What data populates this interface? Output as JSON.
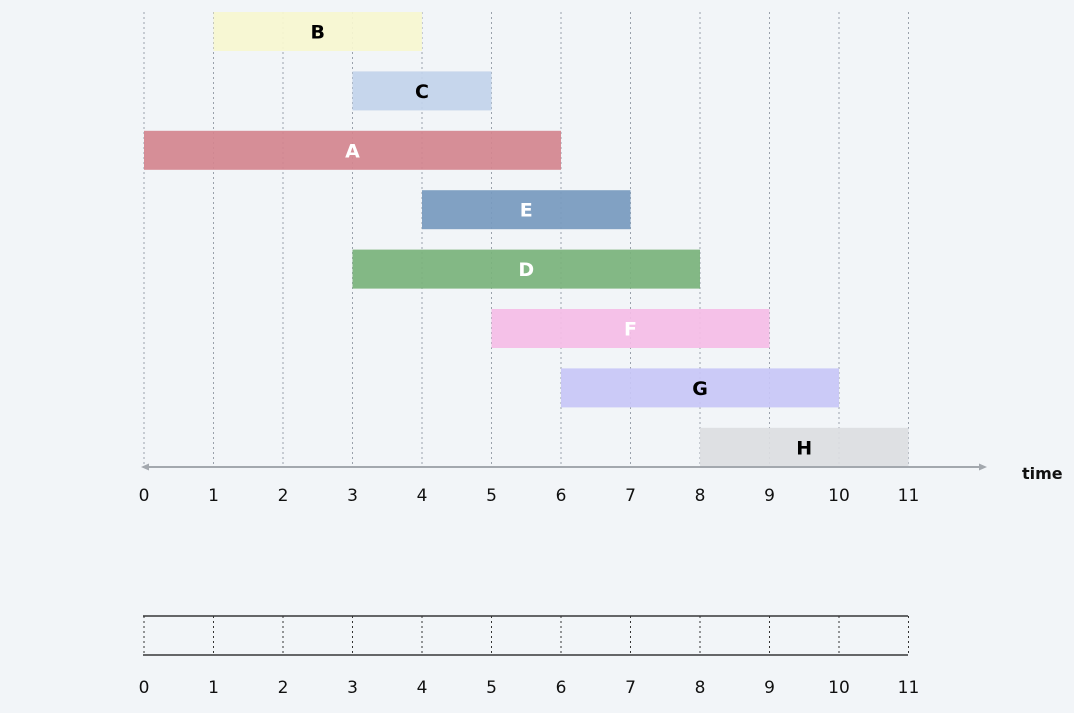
{
  "axis": {
    "label": "time",
    "ticks": [
      0,
      1,
      2,
      3,
      4,
      5,
      6,
      7,
      8,
      9,
      10,
      11
    ]
  },
  "timeline": {
    "ticks": [
      0,
      1,
      2,
      3,
      4,
      5,
      6,
      7,
      8,
      9,
      10,
      11
    ]
  },
  "tasks": [
    {
      "label": "B",
      "start": 1,
      "end": 4,
      "color": "#f7f6cf",
      "text_color": "#000000"
    },
    {
      "label": "C",
      "start": 3,
      "end": 5,
      "color": "#c2d3ea",
      "text_color": "#000000"
    },
    {
      "label": "A",
      "start": 0,
      "end": 6,
      "color": "#d4848e",
      "text_color": "#ffffff"
    },
    {
      "label": "E",
      "start": 4,
      "end": 7,
      "color": "#7799be",
      "text_color": "#ffffff"
    },
    {
      "label": "D",
      "start": 3,
      "end": 8,
      "color": "#7ab27b",
      "text_color": "#ffffff"
    },
    {
      "label": "F",
      "start": 5,
      "end": 9,
      "color": "#f5bce6",
      "text_color": "#ffffff"
    },
    {
      "label": "G",
      "start": 6,
      "end": 10,
      "color": "#c8c6f6",
      "text_color": "#000000"
    },
    {
      "label": "H",
      "start": 8,
      "end": 11,
      "color": "#dcdde1",
      "text_color": "#000000"
    }
  ],
  "colors": {
    "grid": "#9aa1ab",
    "axis": "#a3a8ae",
    "timeline_border": "#111111"
  }
}
